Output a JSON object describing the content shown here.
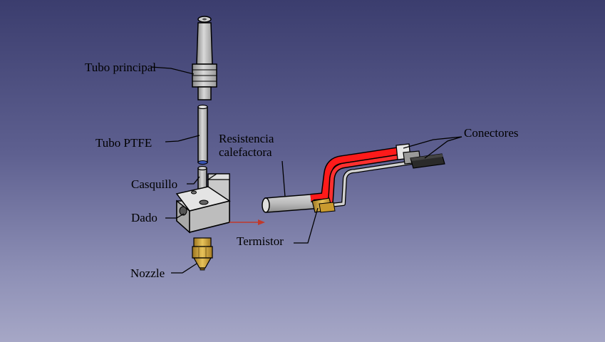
{
  "labels": {
    "tubo_principal": "Tubo principal",
    "tubo_ptfe": "Tubo PTFE",
    "casquillo": "Casquillo",
    "dado": "Dado",
    "nozzle": "Nozzle",
    "resistencia_line1": "Resistencia",
    "resistencia_line2": "calefactora",
    "termistor": "Termistor",
    "conectores": "Conectores"
  },
  "colors": {
    "metal": "#b9b9b9",
    "brass": "#d2a43a",
    "wire_red": "#ff1a1a",
    "leader": "#000000"
  }
}
